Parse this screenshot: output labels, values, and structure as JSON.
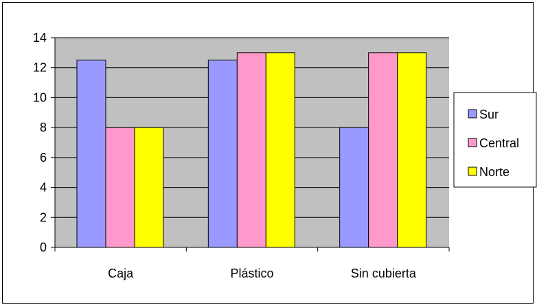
{
  "chart_data": {
    "type": "bar",
    "categories": [
      "Caja",
      "Plástico",
      "Sin cubierta"
    ],
    "series": [
      {
        "name": "Sur",
        "values": [
          12.5,
          12.5,
          8
        ],
        "color": "#9999ff"
      },
      {
        "name": "Central",
        "values": [
          8,
          13,
          13
        ],
        "color": "#ff99cc"
      },
      {
        "name": "Norte",
        "values": [
          8,
          13,
          13
        ],
        "color": "#ffff00"
      }
    ],
    "ylim": [
      0,
      14
    ],
    "yticks": [
      0,
      2,
      4,
      6,
      8,
      10,
      12,
      14
    ],
    "grid": true,
    "plot_background": "#c0c0c0",
    "legend": "right"
  }
}
